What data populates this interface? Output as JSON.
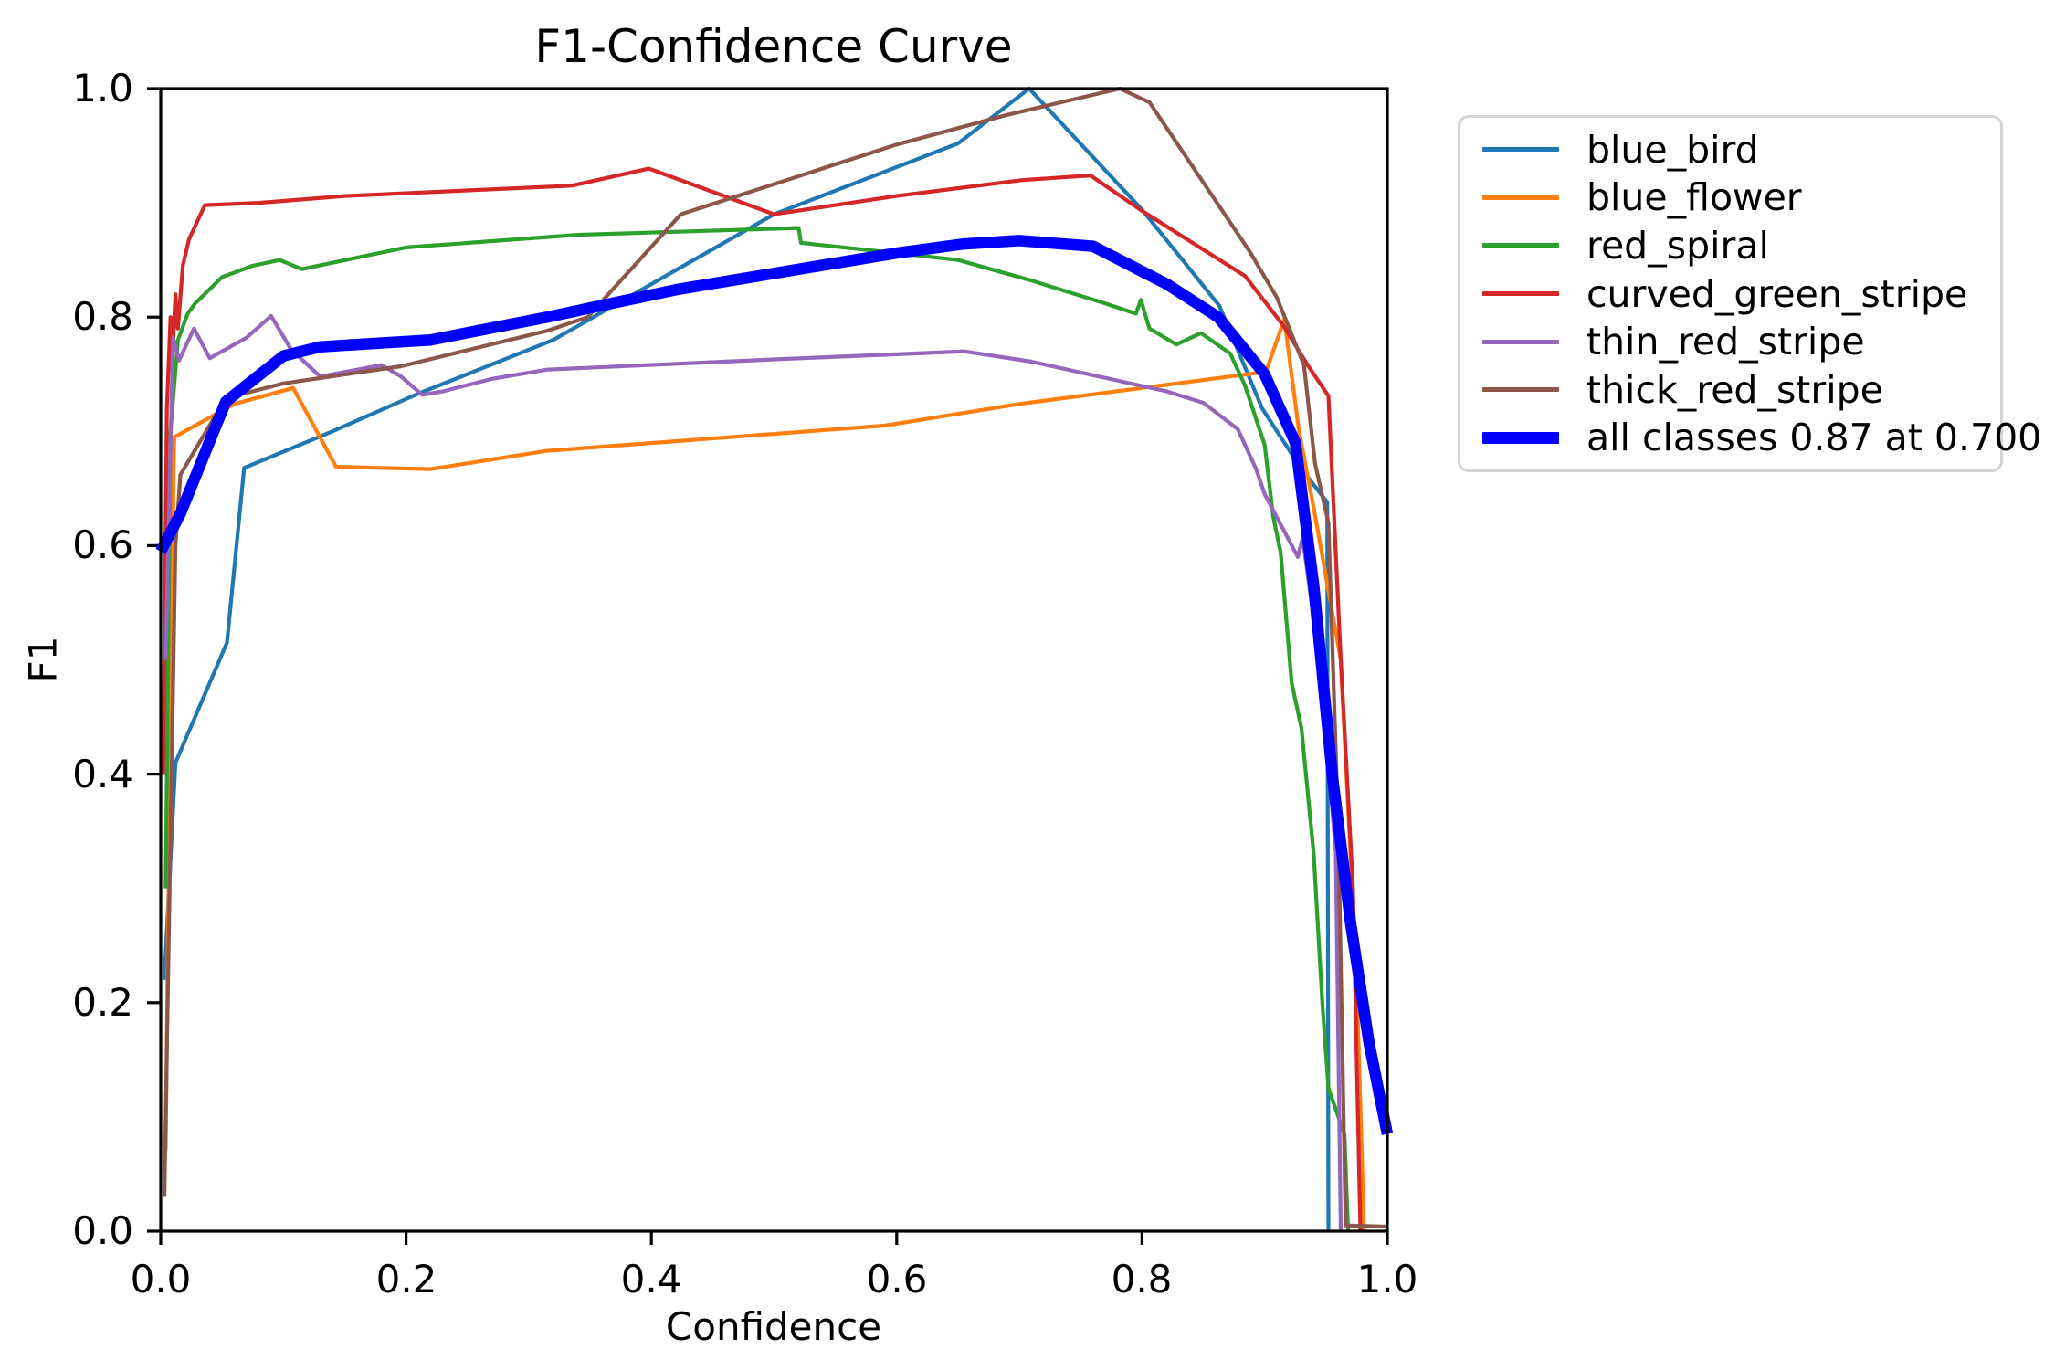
{
  "chart_data": {
    "type": "line",
    "title": "F1-Confidence Curve",
    "xlabel": "Confidence",
    "ylabel": "F1",
    "xlim": [
      0.0,
      1.0
    ],
    "ylim": [
      0.0,
      1.0
    ],
    "xticks": [
      "0.0",
      "0.2",
      "0.4",
      "0.6",
      "0.8",
      "1.0"
    ],
    "yticks": [
      "0.0",
      "0.2",
      "0.4",
      "0.6",
      "0.8",
      "1.0"
    ],
    "grid": false,
    "legend_position": "outside upper right",
    "best_f1_summary": "all classes 0.87 at 0.700",
    "series": [
      {
        "name": "blue_bird",
        "color": "#1f77b4",
        "lw": 4.2,
        "points": [
          [
            0.003,
            0.22
          ],
          [
            0.012,
            0.41
          ],
          [
            0.054,
            0.515
          ],
          [
            0.068,
            0.668
          ],
          [
            0.14,
            0.7
          ],
          [
            0.21,
            0.733
          ],
          [
            0.32,
            0.78
          ],
          [
            0.5,
            0.89
          ],
          [
            0.65,
            0.952
          ],
          [
            0.708,
            1.0
          ],
          [
            0.8,
            0.894
          ],
          [
            0.863,
            0.81
          ],
          [
            0.898,
            0.72
          ],
          [
            0.93,
            0.667
          ],
          [
            0.951,
            0.638
          ],
          [
            0.952,
            0.0
          ]
        ]
      },
      {
        "name": "blue_flower",
        "color": "#ff7f0e",
        "lw": 4.2,
        "points": [
          [
            0.004,
            0.07
          ],
          [
            0.009,
            0.55
          ],
          [
            0.011,
            0.695
          ],
          [
            0.06,
            0.724
          ],
          [
            0.108,
            0.738
          ],
          [
            0.143,
            0.669
          ],
          [
            0.22,
            0.667
          ],
          [
            0.315,
            0.683
          ],
          [
            0.59,
            0.705
          ],
          [
            0.7,
            0.724
          ],
          [
            0.8,
            0.738
          ],
          [
            0.901,
            0.752
          ],
          [
            0.916,
            0.798
          ],
          [
            0.928,
            0.7
          ],
          [
            0.94,
            0.633
          ],
          [
            0.962,
            0.5
          ],
          [
            0.975,
            0.22
          ],
          [
            0.981,
            0.0
          ]
        ]
      },
      {
        "name": "red_spiral",
        "color": "#2ca02c",
        "lw": 4.2,
        "points": [
          [
            0.004,
            0.3
          ],
          [
            0.008,
            0.7
          ],
          [
            0.014,
            0.78
          ],
          [
            0.022,
            0.803
          ],
          [
            0.028,
            0.812
          ],
          [
            0.05,
            0.835
          ],
          [
            0.075,
            0.845
          ],
          [
            0.097,
            0.85
          ],
          [
            0.115,
            0.842
          ],
          [
            0.2,
            0.861
          ],
          [
            0.34,
            0.872
          ],
          [
            0.52,
            0.878
          ],
          [
            0.522,
            0.865
          ],
          [
            0.6,
            0.856
          ],
          [
            0.65,
            0.85
          ],
          [
            0.71,
            0.832
          ],
          [
            0.77,
            0.812
          ],
          [
            0.795,
            0.803
          ],
          [
            0.799,
            0.815
          ],
          [
            0.806,
            0.79
          ],
          [
            0.828,
            0.776
          ],
          [
            0.848,
            0.786
          ],
          [
            0.872,
            0.768
          ],
          [
            0.884,
            0.74
          ],
          [
            0.9,
            0.688
          ],
          [
            0.907,
            0.625
          ],
          [
            0.913,
            0.594
          ],
          [
            0.922,
            0.48
          ],
          [
            0.93,
            0.44
          ],
          [
            0.94,
            0.33
          ],
          [
            0.947,
            0.2
          ],
          [
            0.952,
            0.125
          ],
          [
            0.965,
            0.085
          ],
          [
            0.968,
            0.0
          ]
        ]
      },
      {
        "name": "curved_green_stripe",
        "color": "#d62728",
        "lw": 4.2,
        "points": [
          [
            0.002,
            0.4
          ],
          [
            0.005,
            0.72
          ],
          [
            0.008,
            0.8
          ],
          [
            0.01,
            0.775
          ],
          [
            0.012,
            0.82
          ],
          [
            0.014,
            0.79
          ],
          [
            0.018,
            0.845
          ],
          [
            0.023,
            0.868
          ],
          [
            0.036,
            0.898
          ],
          [
            0.08,
            0.9
          ],
          [
            0.15,
            0.906
          ],
          [
            0.335,
            0.915
          ],
          [
            0.398,
            0.93
          ],
          [
            0.5,
            0.89
          ],
          [
            0.6,
            0.906
          ],
          [
            0.703,
            0.92
          ],
          [
            0.758,
            0.924
          ],
          [
            0.8,
            0.893
          ],
          [
            0.884,
            0.836
          ],
          [
            0.915,
            0.793
          ],
          [
            0.935,
            0.758
          ],
          [
            0.952,
            0.731
          ],
          [
            0.962,
            0.5
          ],
          [
            0.972,
            0.3
          ],
          [
            0.978,
            0.0
          ]
        ]
      },
      {
        "name": "thin_red_stripe",
        "color": "#9467bd",
        "lw": 4.2,
        "points": [
          [
            0.004,
            0.5
          ],
          [
            0.01,
            0.782
          ],
          [
            0.015,
            0.762
          ],
          [
            0.027,
            0.79
          ],
          [
            0.04,
            0.764
          ],
          [
            0.07,
            0.782
          ],
          [
            0.09,
            0.801
          ],
          [
            0.106,
            0.772
          ],
          [
            0.13,
            0.748
          ],
          [
            0.18,
            0.758
          ],
          [
            0.196,
            0.748
          ],
          [
            0.213,
            0.732
          ],
          [
            0.23,
            0.735
          ],
          [
            0.27,
            0.746
          ],
          [
            0.315,
            0.754
          ],
          [
            0.5,
            0.763
          ],
          [
            0.655,
            0.77
          ],
          [
            0.71,
            0.761
          ],
          [
            0.82,
            0.735
          ],
          [
            0.85,
            0.725
          ],
          [
            0.878,
            0.702
          ],
          [
            0.893,
            0.667
          ],
          [
            0.9,
            0.645
          ],
          [
            0.927,
            0.59
          ],
          [
            0.931,
            0.607
          ],
          [
            0.947,
            0.48
          ],
          [
            0.958,
            0.33
          ],
          [
            0.962,
            0.0
          ]
        ]
      },
      {
        "name": "thick_red_stripe",
        "color": "#8c564b",
        "lw": 4.2,
        "points": [
          [
            0.003,
            0.03
          ],
          [
            0.012,
            0.6
          ],
          [
            0.016,
            0.662
          ],
          [
            0.053,
            0.729
          ],
          [
            0.1,
            0.742
          ],
          [
            0.196,
            0.757
          ],
          [
            0.315,
            0.788
          ],
          [
            0.348,
            0.8
          ],
          [
            0.424,
            0.89
          ],
          [
            0.6,
            0.951
          ],
          [
            0.69,
            0.977
          ],
          [
            0.782,
            1.0
          ],
          [
            0.806,
            0.988
          ],
          [
            0.888,
            0.857
          ],
          [
            0.91,
            0.817
          ],
          [
            0.932,
            0.758
          ],
          [
            0.941,
            0.672
          ],
          [
            0.952,
            0.62
          ],
          [
            0.96,
            0.35
          ],
          [
            0.966,
            0.005
          ],
          [
            0.999,
            0.004
          ]
        ]
      },
      {
        "name": "all classes 0.87 at 0.700",
        "color": "#0000ff",
        "lw": 12.5,
        "points": [
          [
            0.0,
            0.595
          ],
          [
            0.016,
            0.628
          ],
          [
            0.053,
            0.726
          ],
          [
            0.1,
            0.766
          ],
          [
            0.13,
            0.774
          ],
          [
            0.22,
            0.78
          ],
          [
            0.315,
            0.8
          ],
          [
            0.42,
            0.824
          ],
          [
            0.515,
            0.841
          ],
          [
            0.6,
            0.856
          ],
          [
            0.655,
            0.864
          ],
          [
            0.7,
            0.867
          ],
          [
            0.76,
            0.862
          ],
          [
            0.82,
            0.829
          ],
          [
            0.862,
            0.8
          ],
          [
            0.9,
            0.75
          ],
          [
            0.925,
            0.69
          ],
          [
            0.94,
            0.565
          ],
          [
            0.955,
            0.4
          ],
          [
            0.97,
            0.27
          ],
          [
            0.985,
            0.165
          ],
          [
            1.0,
            0.085
          ]
        ]
      }
    ]
  }
}
